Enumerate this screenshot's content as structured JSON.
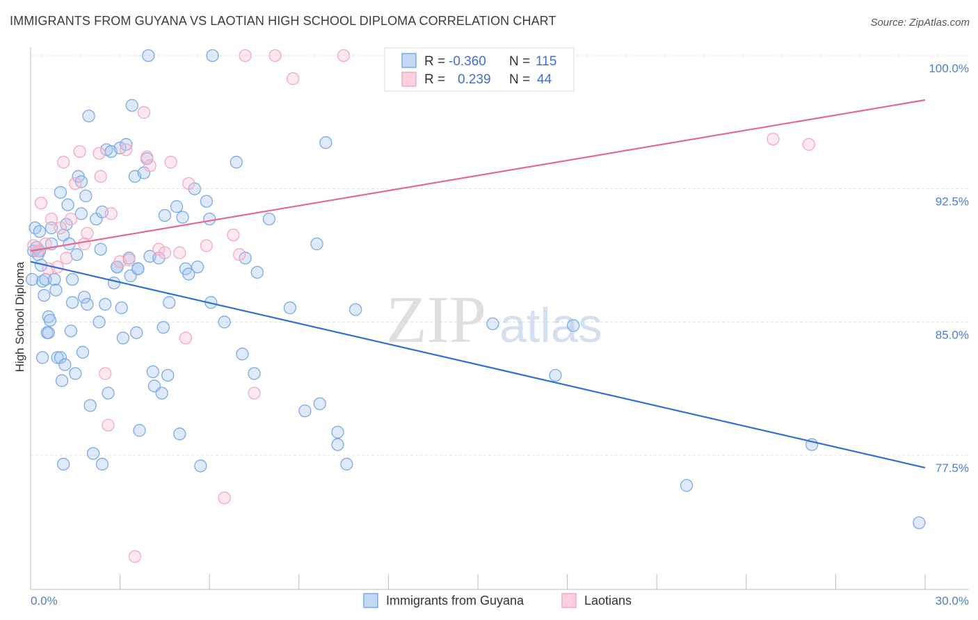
{
  "title": "IMMIGRANTS FROM GUYANA VS LAOTIAN HIGH SCHOOL DIPLOMA CORRELATION CHART",
  "source": "Source: ZipAtlas.com",
  "watermark": {
    "zip": "ZIP",
    "atlas": "atlas"
  },
  "chart_data": {
    "type": "scatter",
    "ylabel": "High School Diploma",
    "xlim": [
      0.0,
      30.0
    ],
    "ylim": [
      71.0,
      101.0
    ],
    "x_tick_labels": [
      "0.0%",
      "30.0%"
    ],
    "y_ticks": [
      77.5,
      85.0,
      92.5,
      100.0
    ],
    "y_tick_labels": [
      "77.5%",
      "85.0%",
      "92.5%",
      "100.0%"
    ],
    "grid": true,
    "legend_position": "top-center",
    "legend": [
      {
        "r_label": "R =",
        "r_value": "-0.360",
        "n_label": "N =",
        "n_value": "115"
      },
      {
        "r_label": "R =",
        "r_value": "0.239",
        "n_label": "N =",
        "n_value": "44"
      }
    ],
    "series": [
      {
        "name": "Immigrants from Guyana",
        "color": "#7aaae6",
        "line_color": "#2e6fd4",
        "trend": {
          "x0": 0.0,
          "y0": 88.4,
          "x1": 30.0,
          "y1": 76.8
        },
        "points": [
          [
            0.1,
            89.0
          ],
          [
            0.15,
            90.3
          ],
          [
            0.2,
            89.2
          ],
          [
            0.25,
            88.8
          ],
          [
            0.3,
            90.1
          ],
          [
            0.35,
            88.2
          ],
          [
            0.4,
            87.3
          ],
          [
            0.45,
            86.5
          ],
          [
            0.5,
            87.4
          ],
          [
            0.55,
            84.4
          ],
          [
            0.6,
            85.3
          ],
          [
            0.65,
            85.1
          ],
          [
            0.7,
            89.4
          ],
          [
            0.8,
            87.4
          ],
          [
            0.85,
            86.8
          ],
          [
            0.9,
            83.0
          ],
          [
            1.0,
            83.0
          ],
          [
            1.05,
            81.7
          ],
          [
            1.1,
            89.9
          ],
          [
            1.15,
            82.6
          ],
          [
            1.2,
            90.5
          ],
          [
            1.25,
            91.6
          ],
          [
            1.3,
            89.4
          ],
          [
            1.35,
            84.5
          ],
          [
            1.4,
            87.4
          ],
          [
            1.5,
            82.1
          ],
          [
            1.55,
            88.8
          ],
          [
            1.6,
            93.2
          ],
          [
            1.7,
            92.9
          ],
          [
            1.75,
            83.3
          ],
          [
            1.8,
            86.4
          ],
          [
            1.85,
            92.1
          ],
          [
            1.9,
            86.0
          ],
          [
            1.95,
            96.6
          ],
          [
            2.0,
            80.3
          ],
          [
            2.1,
            77.6
          ],
          [
            2.2,
            90.8
          ],
          [
            2.3,
            85.0
          ],
          [
            2.35,
            89.1
          ],
          [
            2.4,
            91.2
          ],
          [
            2.5,
            86.0
          ],
          [
            2.55,
            94.7
          ],
          [
            2.6,
            81.0
          ],
          [
            2.7,
            94.6
          ],
          [
            2.8,
            87.2
          ],
          [
            2.9,
            88.1
          ],
          [
            3.0,
            94.8
          ],
          [
            3.05,
            85.8
          ],
          [
            3.1,
            84.1
          ],
          [
            3.2,
            95.0
          ],
          [
            3.3,
            88.6
          ],
          [
            3.35,
            87.6
          ],
          [
            3.4,
            97.2
          ],
          [
            3.5,
            93.2
          ],
          [
            3.55,
            84.4
          ],
          [
            3.6,
            88.0
          ],
          [
            3.65,
            78.9
          ],
          [
            3.8,
            93.4
          ],
          [
            3.9,
            94.2
          ],
          [
            3.95,
            100.0
          ],
          [
            4.0,
            88.7
          ],
          [
            4.1,
            82.2
          ],
          [
            4.15,
            81.4
          ],
          [
            4.3,
            88.6
          ],
          [
            4.4,
            81.0
          ],
          [
            4.45,
            84.7
          ],
          [
            4.5,
            91.0
          ],
          [
            4.6,
            82.0
          ],
          [
            4.65,
            86.1
          ],
          [
            4.9,
            91.5
          ],
          [
            5.0,
            78.7
          ],
          [
            5.1,
            90.9
          ],
          [
            5.2,
            88.0
          ],
          [
            5.3,
            87.7
          ],
          [
            5.5,
            92.5
          ],
          [
            5.6,
            88.1
          ],
          [
            5.7,
            76.9
          ],
          [
            5.9,
            91.8
          ],
          [
            6.0,
            90.8
          ],
          [
            6.05,
            86.1
          ],
          [
            6.1,
            100.0
          ],
          [
            6.5,
            85.0
          ],
          [
            6.9,
            94.0
          ],
          [
            7.1,
            83.2
          ],
          [
            7.2,
            88.6
          ],
          [
            7.5,
            82.1
          ],
          [
            7.6,
            87.8
          ],
          [
            8.0,
            90.8
          ],
          [
            8.7,
            85.8
          ],
          [
            9.2,
            80.0
          ],
          [
            9.6,
            89.4
          ],
          [
            9.7,
            80.4
          ],
          [
            9.9,
            95.1
          ],
          [
            10.3,
            78.8
          ],
          [
            10.3,
            78.1
          ],
          [
            10.6,
            77.0
          ],
          [
            10.9,
            85.7
          ],
          [
            1.1,
            77.0
          ],
          [
            2.4,
            77.0
          ],
          [
            0.05,
            87.4
          ],
          [
            0.3,
            89.0
          ],
          [
            0.6,
            84.4
          ],
          [
            0.7,
            90.3
          ],
          [
            1.4,
            86.1
          ],
          [
            1.7,
            91.1
          ],
          [
            2.9,
            88.1
          ],
          [
            3.6,
            88.0
          ],
          [
            15.5,
            84.9
          ],
          [
            17.6,
            82.0
          ],
          [
            18.2,
            84.8
          ],
          [
            22.0,
            75.8
          ],
          [
            26.2,
            78.1
          ],
          [
            29.8,
            73.7
          ],
          [
            0.4,
            83.0
          ],
          [
            1.0,
            92.3
          ]
        ]
      },
      {
        "name": "Laotians",
        "color": "#f5a8c0",
        "line_color": "#e46890",
        "trend": {
          "x0": 0.0,
          "y0": 89.0,
          "x1": 30.0,
          "y1": 97.5
        },
        "points": [
          [
            0.1,
            89.3
          ],
          [
            0.25,
            89.0
          ],
          [
            0.35,
            91.7
          ],
          [
            0.5,
            89.4
          ],
          [
            0.6,
            88.0
          ],
          [
            0.7,
            90.8
          ],
          [
            0.9,
            88.1
          ],
          [
            1.0,
            90.3
          ],
          [
            1.1,
            94.0
          ],
          [
            1.2,
            88.6
          ],
          [
            1.35,
            90.8
          ],
          [
            1.5,
            92.8
          ],
          [
            1.65,
            94.6
          ],
          [
            1.8,
            89.4
          ],
          [
            1.9,
            90.0
          ],
          [
            2.3,
            94.5
          ],
          [
            2.35,
            93.2
          ],
          [
            2.5,
            82.1
          ],
          [
            2.6,
            79.2
          ],
          [
            2.7,
            91.1
          ],
          [
            3.0,
            88.4
          ],
          [
            3.2,
            94.7
          ],
          [
            3.3,
            88.5
          ],
          [
            3.5,
            71.8
          ],
          [
            3.8,
            96.8
          ],
          [
            3.9,
            94.3
          ],
          [
            4.0,
            93.8
          ],
          [
            4.3,
            89.1
          ],
          [
            4.5,
            88.9
          ],
          [
            4.7,
            94.0
          ],
          [
            5.0,
            88.9
          ],
          [
            5.2,
            84.1
          ],
          [
            5.3,
            92.8
          ],
          [
            5.9,
            89.3
          ],
          [
            6.5,
            75.1
          ],
          [
            6.8,
            89.9
          ],
          [
            7.0,
            88.8
          ],
          [
            7.2,
            100.0
          ],
          [
            7.5,
            81.0
          ],
          [
            8.2,
            100.0
          ],
          [
            8.8,
            98.7
          ],
          [
            10.5,
            100.0
          ],
          [
            24.9,
            95.3
          ],
          [
            26.1,
            95.0
          ]
        ]
      }
    ]
  }
}
